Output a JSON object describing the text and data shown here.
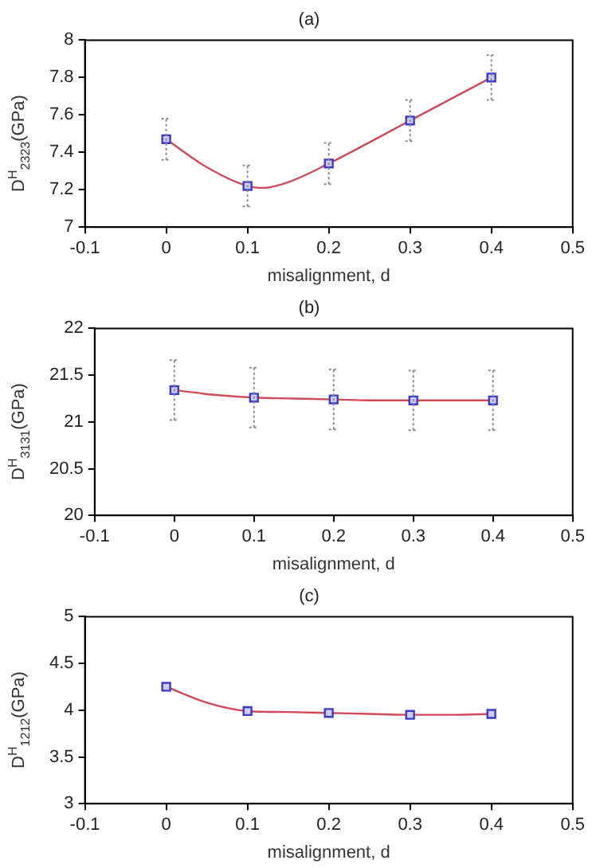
{
  "chart_data": [
    {
      "type": "scatter",
      "title": "(a)",
      "xlabel": "misalignment, d",
      "ylabel": "D$^{H}$$_{2323}$(GPa)",
      "xlim": [
        -0.1,
        0.5
      ],
      "xticks": [
        -0.1,
        0,
        0.1,
        0.2,
        0.3,
        0.4,
        0.5
      ],
      "ylim": [
        7,
        8
      ],
      "yticks": [
        7,
        7.2,
        7.4,
        7.6,
        7.8,
        8
      ],
      "grid": false,
      "legend": false,
      "series": [
        {
          "type": "scatter",
          "color": "#3a3acc",
          "marker": "square",
          "x": [
            0,
            0.1,
            0.2,
            0.3,
            0.4
          ],
          "values": [
            7.47,
            7.22,
            7.34,
            7.57,
            7.8
          ],
          "errors": [
            0.11,
            0.11,
            0.11,
            0.11,
            0.12
          ]
        },
        {
          "type": "line",
          "color": "#d04a5a",
          "marker": "none",
          "line_style": "solid",
          "x": [
            0,
            0.05,
            0.1,
            0.12,
            0.15,
            0.2,
            0.3,
            0.4
          ],
          "values": [
            7.47,
            7.32,
            7.22,
            7.21,
            7.24,
            7.34,
            7.57,
            7.8
          ]
        }
      ]
    },
    {
      "type": "scatter",
      "title": "(b)",
      "xlabel": "misalignment, d",
      "ylabel": "D$^{H}$$_{3131}$(GPa)",
      "xlim": [
        -0.1,
        0.5
      ],
      "xticks": [
        -0.1,
        0,
        0.1,
        0.2,
        0.3,
        0.4,
        0.5
      ],
      "ylim": [
        20,
        22
      ],
      "yticks": [
        20,
        20.5,
        21,
        21.5,
        22
      ],
      "grid": false,
      "legend": false,
      "series": [
        {
          "type": "scatter",
          "color": "#3a3acc",
          "marker": "square",
          "x": [
            0,
            0.1,
            0.2,
            0.3,
            0.4
          ],
          "values": [
            21.34,
            21.26,
            21.24,
            21.23,
            21.23
          ],
          "errors": [
            0.32,
            0.32,
            0.32,
            0.32,
            0.32
          ]
        },
        {
          "type": "line",
          "color": "#d04a5a",
          "marker": "none",
          "line_style": "solid",
          "x": [
            0,
            0.05,
            0.1,
            0.15,
            0.2,
            0.25,
            0.3,
            0.35,
            0.4
          ],
          "values": [
            21.34,
            21.29,
            21.26,
            21.25,
            21.24,
            21.23,
            21.23,
            21.23,
            21.23
          ]
        }
      ]
    },
    {
      "type": "scatter",
      "title": "(c)",
      "xlabel": "misalignment, d",
      "ylabel": "D$^{H}$$_{1212}$(GPa)",
      "xlim": [
        -0.1,
        0.5
      ],
      "xticks": [
        -0.1,
        0,
        0.1,
        0.2,
        0.3,
        0.4,
        0.5
      ],
      "ylim": [
        3,
        5
      ],
      "yticks": [
        3,
        3.5,
        4,
        4.5,
        5
      ],
      "grid": false,
      "legend": false,
      "series": [
        {
          "type": "scatter",
          "color": "#3a3acc",
          "marker": "square",
          "x": [
            0,
            0.1,
            0.2,
            0.3,
            0.4
          ],
          "values": [
            4.25,
            3.99,
            3.97,
            3.95,
            3.96
          ]
        },
        {
          "type": "line",
          "color": "#d04a5a",
          "marker": "none",
          "line_style": "solid",
          "x": [
            0,
            0.05,
            0.1,
            0.15,
            0.2,
            0.25,
            0.3,
            0.35,
            0.4
          ],
          "values": [
            4.25,
            4.08,
            3.99,
            3.98,
            3.97,
            3.96,
            3.95,
            3.95,
            3.96
          ]
        }
      ]
    }
  ]
}
